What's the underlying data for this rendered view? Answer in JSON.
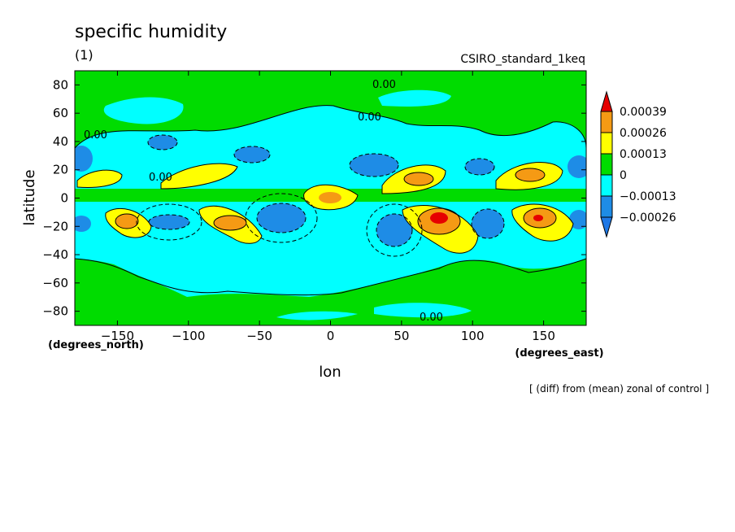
{
  "chart_data": {
    "type": "heatmap",
    "title": "specific humidity",
    "subtitle": "(1)",
    "experiment": "CSIRO_standard_1keq",
    "xlabel": "lon",
    "ylabel": "latitude",
    "x_units": "(degrees_east)",
    "y_units": "(degrees_north)",
    "footnote": "[ (diff) from (mean) zonal of control ]",
    "xlim": [
      -180,
      180
    ],
    "ylim": [
      -90,
      90
    ],
    "x_ticks": [
      -150,
      -100,
      -50,
      0,
      50,
      100,
      150
    ],
    "y_ticks": [
      -80,
      -60,
      -40,
      -20,
      0,
      20,
      40,
      60,
      80
    ],
    "levels": [
      -0.00026,
      -0.00013,
      0,
      0.00013,
      0.00026,
      0.00039
    ],
    "colorbar_labels": [
      "0.00039",
      "0.00026",
      "0.00013",
      "0",
      "−0.00013",
      "−0.00026"
    ],
    "colors": {
      "below_lowest": "#1e78e6",
      "neg_mid": "#1e8ce6",
      "neg_low": "#00ffff",
      "zero_band": "#00dc00",
      "pos_low": "#ffff00",
      "pos_mid": "#f59a14",
      "above_highest": "#e60000"
    },
    "contour_labels": [
      "0.00",
      "0.00",
      "0.00",
      "0.00",
      "0.00"
    ],
    "features": [
      {
        "lon": -155,
        "lat": 10,
        "value": 0.00013
      },
      {
        "lon": -90,
        "lat": 13,
        "value": 0.00013
      },
      {
        "lon": -140,
        "lat": -18,
        "value": 0.00026
      },
      {
        "lon": -75,
        "lat": -18,
        "value": 0.00026
      },
      {
        "lon": 5,
        "lat": 2,
        "value": 0.00026
      },
      {
        "lon": 62,
        "lat": 12,
        "value": 0.00026
      },
      {
        "lon": 75,
        "lat": -17,
        "value": 0.00039
      },
      {
        "lon": 140,
        "lat": 15,
        "value": 0.00026
      },
      {
        "lon": 145,
        "lat": -15,
        "value": 0.00039
      },
      {
        "lon": -105,
        "lat": -18,
        "value": -0.00026
      },
      {
        "lon": -35,
        "lat": -18,
        "value": -0.00026
      },
      {
        "lon": 45,
        "lat": -22,
        "value": -0.00026
      },
      {
        "lon": 105,
        "lat": -20,
        "value": -0.00026
      },
      {
        "lon": 30,
        "lat": 20,
        "value": -0.00026
      },
      {
        "lon": -115,
        "lat": 38,
        "value": -0.00026
      },
      {
        "lon": 95,
        "lat": 18,
        "value": -0.00026
      },
      {
        "lon": -80,
        "lat": 22,
        "value": -0.00013
      },
      {
        "lon": 175,
        "lat": 20,
        "value": -0.00026
      }
    ]
  }
}
